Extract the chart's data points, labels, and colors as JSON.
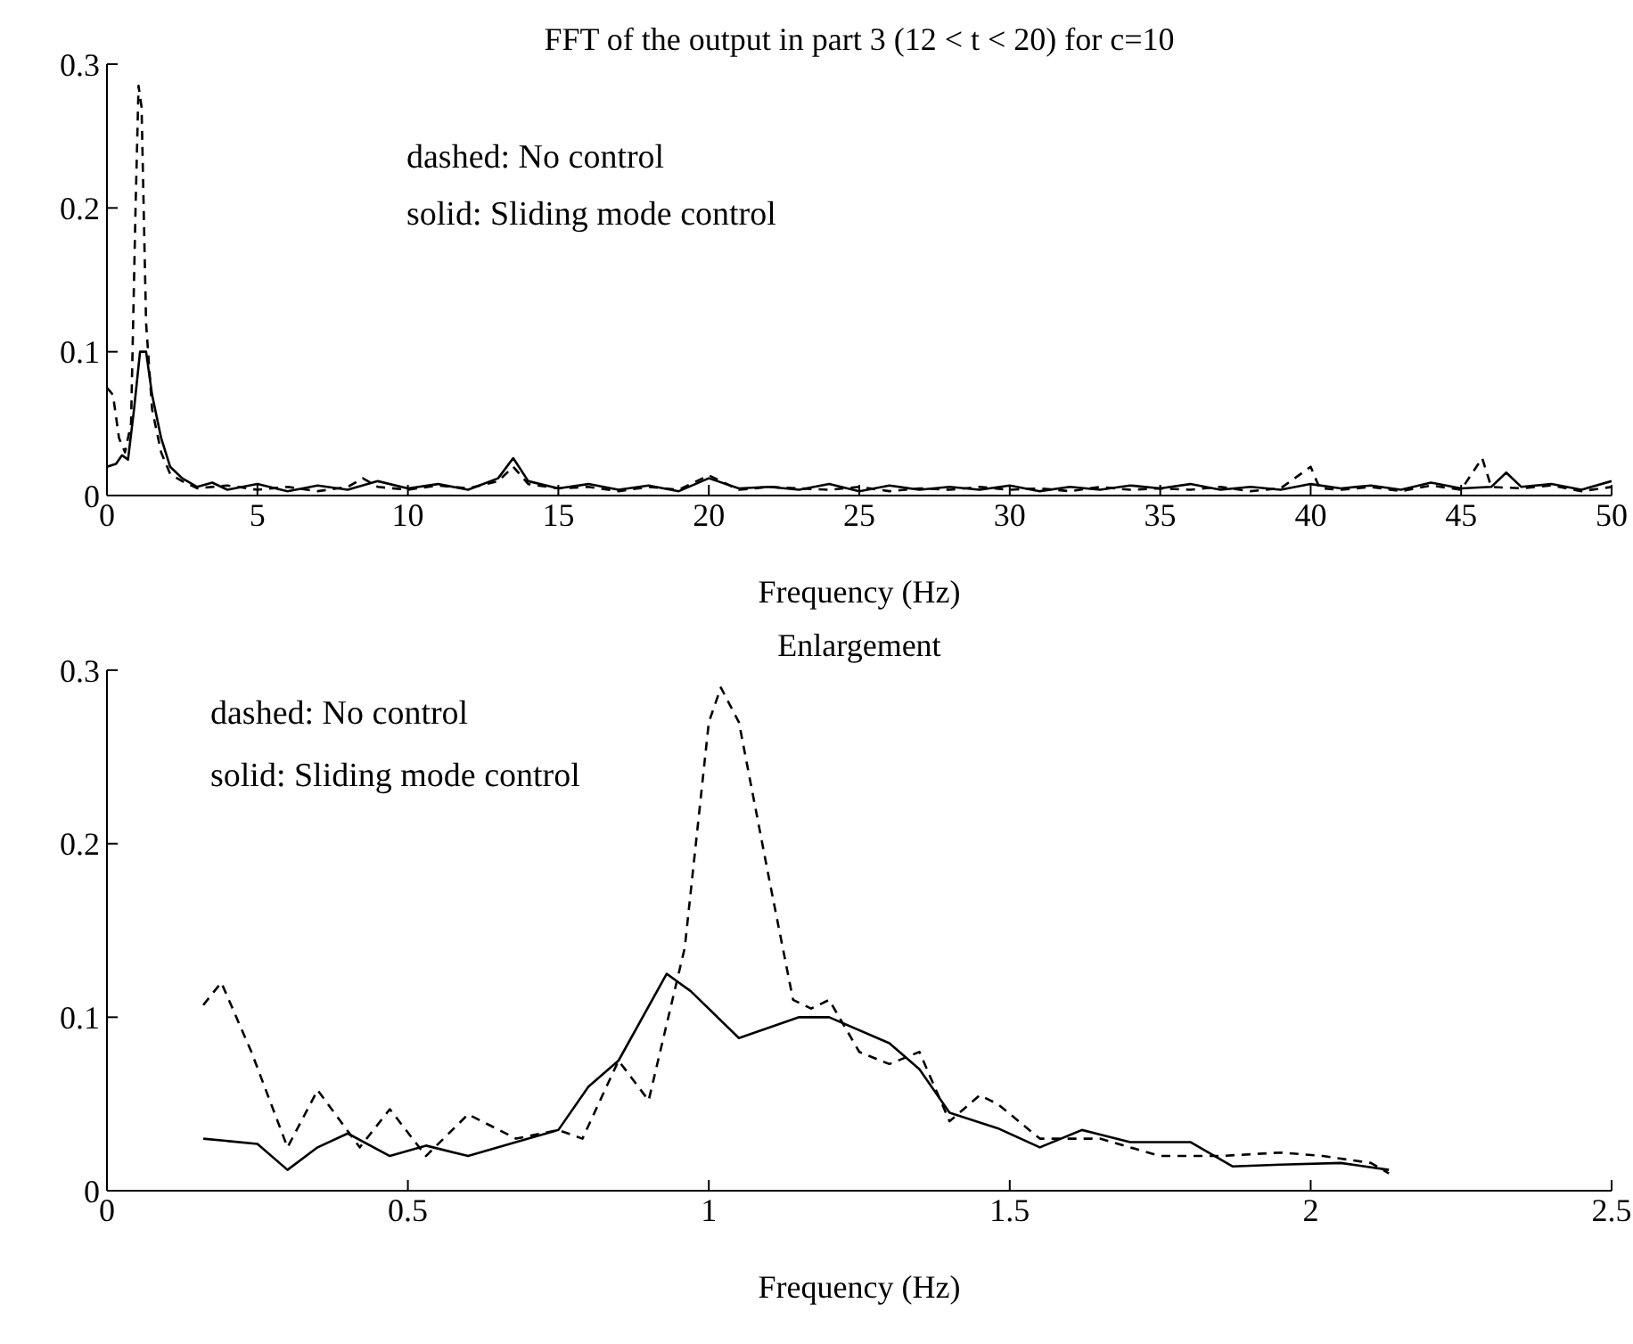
{
  "chart_data": [
    {
      "type": "line",
      "title": "FFT of the output in part 3 (12 < t < 20) for c=10",
      "xlabel": "Frequency (Hz)",
      "xlim": [
        0,
        50
      ],
      "xticks": [
        0,
        5,
        10,
        15,
        20,
        25,
        30,
        35,
        40,
        45,
        50
      ],
      "ylim": [
        0,
        0.3
      ],
      "yticks": [
        0,
        0.1,
        0.2,
        0.3
      ],
      "grid": false,
      "legend": false,
      "marker": "none",
      "annotations": [
        "dashed: No control",
        "solid: Sliding mode control"
      ],
      "series": [
        {
          "color": "#000000",
          "line_style": "dashed",
          "x": [
            0,
            0.2,
            0.4,
            0.6,
            0.8,
            0.95,
            1.05,
            1.15,
            1.3,
            1.5,
            1.8,
            2.1,
            2.5,
            3,
            4,
            5,
            6,
            7,
            8,
            8.5,
            9,
            10,
            11,
            12,
            13,
            13.5,
            14,
            15,
            16,
            17,
            18,
            19,
            20,
            21,
            22,
            23,
            24,
            25,
            26,
            27,
            28,
            29,
            30,
            31,
            32,
            33,
            34,
            35,
            36,
            37,
            38,
            39,
            40,
            40.3,
            41,
            42,
            43,
            44,
            45,
            45.7,
            46,
            47,
            48,
            49,
            50
          ],
          "values": [
            0.075,
            0.07,
            0.04,
            0.03,
            0.05,
            0.2,
            0.285,
            0.27,
            0.12,
            0.06,
            0.03,
            0.015,
            0.01,
            0.005,
            0.007,
            0.004,
            0.006,
            0.003,
            0.006,
            0.012,
            0.006,
            0.004,
            0.007,
            0.005,
            0.01,
            0.02,
            0.008,
            0.005,
            0.006,
            0.003,
            0.006,
            0.004,
            0.014,
            0.004,
            0.006,
            0.005,
            0.004,
            0.006,
            0.003,
            0.005,
            0.004,
            0.006,
            0.004,
            0.005,
            0.003,
            0.006,
            0.004,
            0.005,
            0.004,
            0.006,
            0.003,
            0.005,
            0.02,
            0.005,
            0.004,
            0.006,
            0.003,
            0.007,
            0.004,
            0.026,
            0.006,
            0.005,
            0.007,
            0.003,
            0.006
          ]
        },
        {
          "color": "#000000",
          "line_style": "solid",
          "x": [
            0,
            0.3,
            0.5,
            0.7,
            0.9,
            1.1,
            1.3,
            1.5,
            1.8,
            2.1,
            2.5,
            3,
            3.5,
            4,
            5,
            6,
            7,
            8,
            9,
            10,
            11,
            12,
            13,
            13.5,
            14,
            15,
            16,
            17,
            18,
            19,
            20,
            21,
            22,
            23,
            24,
            25,
            26,
            27,
            28,
            29,
            30,
            31,
            32,
            33,
            34,
            35,
            36,
            37,
            38,
            39,
            40,
            41,
            42,
            43,
            44,
            45,
            46,
            46.5,
            47,
            48,
            49,
            50
          ],
          "values": [
            0.02,
            0.022,
            0.028,
            0.025,
            0.06,
            0.1,
            0.1,
            0.07,
            0.04,
            0.02,
            0.012,
            0.006,
            0.009,
            0.004,
            0.008,
            0.003,
            0.007,
            0.004,
            0.01,
            0.005,
            0.008,
            0.004,
            0.012,
            0.026,
            0.01,
            0.005,
            0.008,
            0.004,
            0.007,
            0.003,
            0.012,
            0.005,
            0.006,
            0.004,
            0.008,
            0.003,
            0.007,
            0.004,
            0.006,
            0.004,
            0.007,
            0.003,
            0.006,
            0.004,
            0.007,
            0.005,
            0.008,
            0.004,
            0.006,
            0.004,
            0.008,
            0.005,
            0.007,
            0.004,
            0.009,
            0.005,
            0.006,
            0.016,
            0.006,
            0.008,
            0.004,
            0.01
          ]
        }
      ]
    },
    {
      "type": "line",
      "title": "Enlargement",
      "xlabel": "Frequency (Hz)",
      "xlim": [
        0,
        2.5
      ],
      "xticks": [
        0,
        0.5,
        1,
        1.5,
        2,
        2.5
      ],
      "ylim": [
        0,
        0.3
      ],
      "yticks": [
        0,
        0.1,
        0.2,
        0.3
      ],
      "grid": false,
      "legend": false,
      "marker": "none",
      "annotations": [
        "dashed: No control",
        "solid: Sliding mode control"
      ],
      "series": [
        {
          "color": "#000000",
          "line_style": "dashed",
          "x": [
            0.16,
            0.19,
            0.24,
            0.3,
            0.35,
            0.42,
            0.47,
            0.53,
            0.6,
            0.68,
            0.75,
            0.79,
            0.85,
            0.9,
            0.96,
            1.0,
            1.02,
            1.05,
            1.1,
            1.14,
            1.17,
            1.2,
            1.25,
            1.3,
            1.35,
            1.4,
            1.45,
            1.48,
            1.55,
            1.65,
            1.75,
            1.85,
            1.95,
            2.02,
            2.1,
            2.13
          ],
          "values": [
            0.107,
            0.12,
            0.08,
            0.025,
            0.058,
            0.025,
            0.047,
            0.02,
            0.044,
            0.03,
            0.035,
            0.03,
            0.075,
            0.052,
            0.14,
            0.27,
            0.29,
            0.27,
            0.18,
            0.11,
            0.105,
            0.11,
            0.08,
            0.073,
            0.08,
            0.04,
            0.055,
            0.05,
            0.03,
            0.03,
            0.02,
            0.02,
            0.022,
            0.02,
            0.016,
            0.01
          ]
        },
        {
          "color": "#000000",
          "line_style": "solid",
          "x": [
            0.16,
            0.25,
            0.3,
            0.35,
            0.4,
            0.47,
            0.53,
            0.6,
            0.7,
            0.75,
            0.8,
            0.85,
            0.93,
            0.97,
            1.05,
            1.15,
            1.2,
            1.3,
            1.35,
            1.4,
            1.48,
            1.55,
            1.62,
            1.7,
            1.8,
            1.87,
            1.95,
            2.05,
            2.13
          ],
          "values": [
            0.03,
            0.027,
            0.012,
            0.025,
            0.033,
            0.02,
            0.026,
            0.02,
            0.03,
            0.035,
            0.06,
            0.075,
            0.125,
            0.115,
            0.088,
            0.1,
            0.1,
            0.085,
            0.07,
            0.045,
            0.036,
            0.025,
            0.035,
            0.028,
            0.028,
            0.014,
            0.015,
            0.016,
            0.012
          ]
        }
      ]
    }
  ]
}
